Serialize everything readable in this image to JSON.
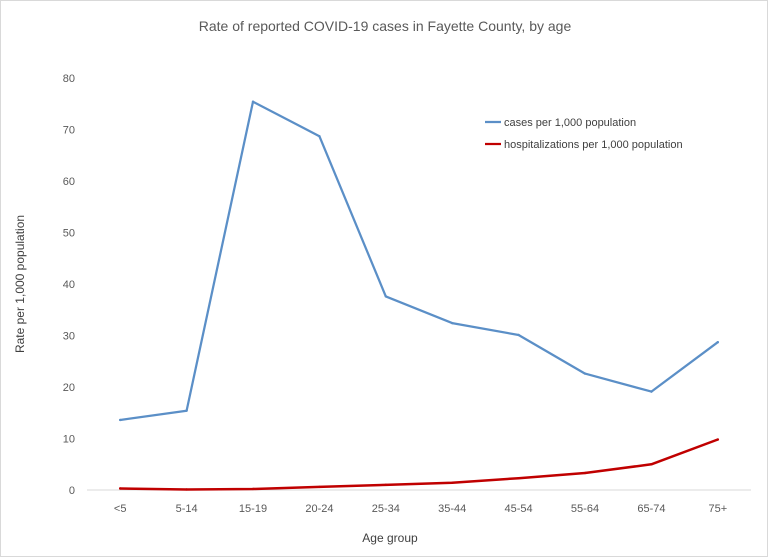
{
  "chart_data": {
    "type": "line",
    "title": "Rate of reported COVID-19 cases in Fayette County, by age",
    "xlabel": "Age group",
    "ylabel": "Rate per 1,000 population",
    "categories": [
      "<5",
      "5-14",
      "15-19",
      "20-24",
      "25-34",
      "35-44",
      "45-54",
      "55-64",
      "65-74",
      "75+"
    ],
    "ylim": [
      0,
      80
    ],
    "yticks": [
      0,
      10,
      20,
      30,
      40,
      50,
      60,
      70,
      80
    ],
    "grid": false,
    "legend_position": "top-right",
    "series": [
      {
        "name": "cases per 1,000 population",
        "color": "#5b8fc7",
        "values": [
          13.6,
          15.4,
          75.4,
          68.7,
          37.6,
          32.4,
          30.1,
          22.6,
          19.1,
          28.7
        ]
      },
      {
        "name": "hospitalizations per 1,000 population",
        "color": "#c00000",
        "values": [
          0.3,
          0.1,
          0.2,
          0.6,
          1.0,
          1.4,
          2.3,
          3.3,
          5.0,
          9.8
        ]
      }
    ]
  }
}
